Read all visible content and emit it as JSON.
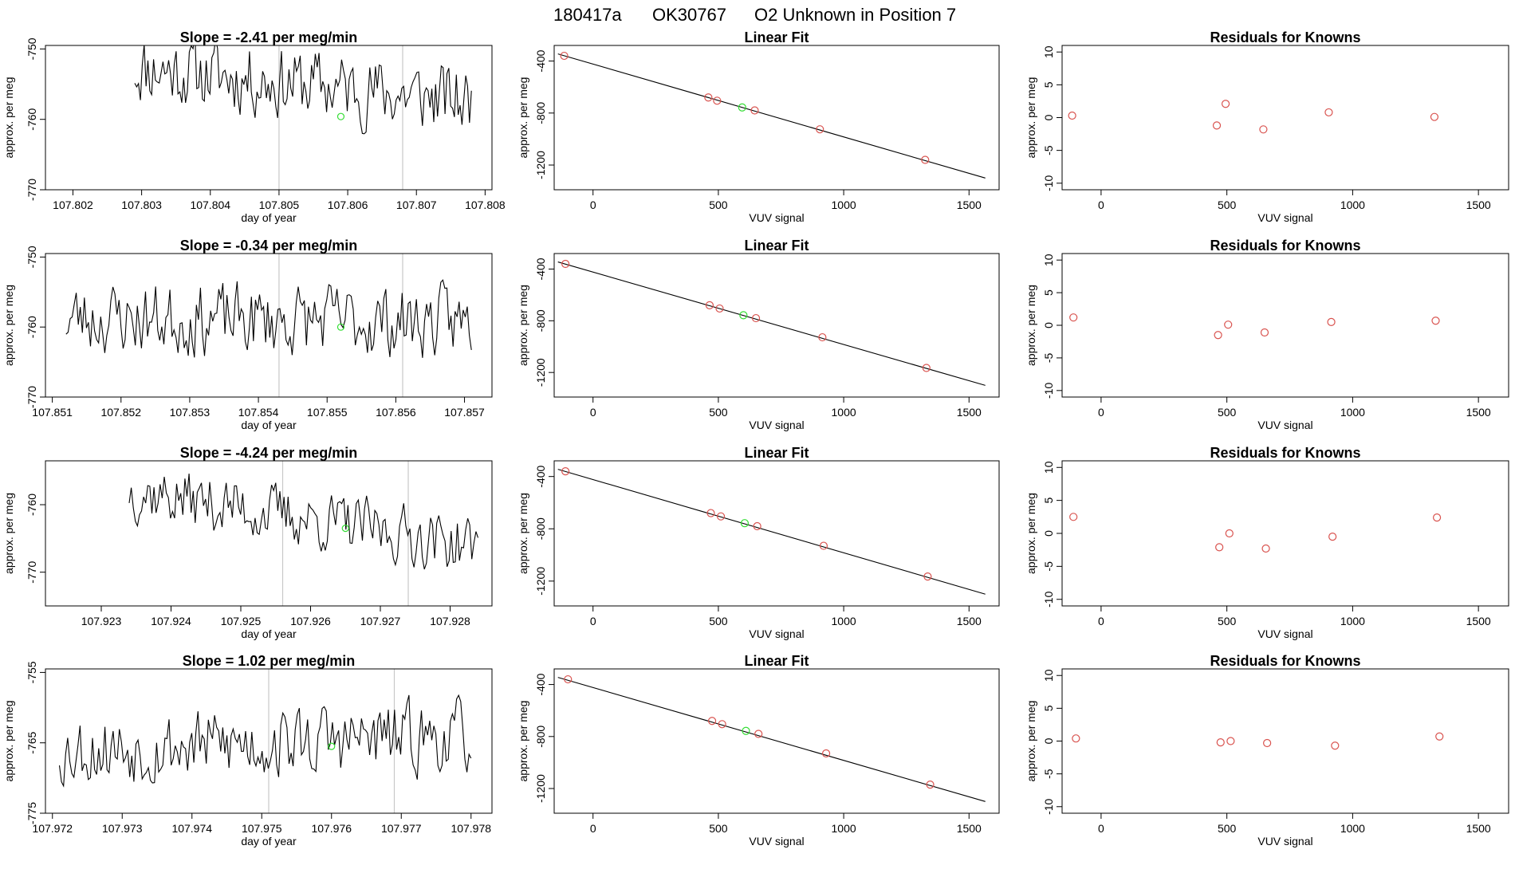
{
  "figure": {
    "title_parts": [
      "180417a",
      "OK30767",
      "O2 Unknown in Position  7"
    ],
    "colors": {
      "trace": "#000000",
      "known": "#d9534f",
      "unknown": "#33dd33",
      "vline": "#c8c8c8",
      "fit": "#000000",
      "axis": "#000000"
    }
  },
  "chart_data": [
    {
      "type": "line",
      "panel": "timeseries",
      "row": 0,
      "title": "Slope =  -2.41  per meg/min",
      "xlabel": "day of year",
      "ylabel": "approx. per meg",
      "xlim": [
        107.8016,
        107.8081
      ],
      "ylim": [
        -770,
        -749.5
      ],
      "xticks": [
        107.802,
        107.803,
        107.804,
        107.805,
        107.806,
        107.807,
        107.808
      ],
      "xtick_labels": [
        "107.802",
        "107.803",
        "107.804",
        "107.805",
        "107.806",
        "107.807",
        "107.808"
      ],
      "yticks": [
        -770,
        -760,
        -750
      ],
      "ytick_labels": [
        "-770",
        "-760",
        "-750"
      ],
      "series_x_range": [
        107.8029,
        107.8078
      ],
      "series_center": -755,
      "series_amp": 7,
      "series_slope": -2.5,
      "seed": 11,
      "n_points": 180,
      "vlines": [
        107.805,
        107.8068
      ],
      "unknown_point": {
        "x": 107.8059,
        "y": -759.6
      }
    },
    {
      "type": "scatter",
      "panel": "linear_fit",
      "row": 0,
      "title": "Linear Fit",
      "xlabel": "VUV signal",
      "ylabel": "approx. per meg",
      "xlim": [
        -155,
        1620
      ],
      "ylim": [
        -1390,
        -280
      ],
      "xticks": [
        0,
        500,
        1000,
        1500
      ],
      "xtick_labels": [
        "0",
        "500",
        "1000",
        "1500"
      ],
      "yticks": [
        -1200,
        -800,
        -400
      ],
      "ytick_labels": [
        "-1200",
        "-800",
        "-400"
      ],
      "knowns": [
        {
          "x": -115,
          "y": -360
        },
        {
          "x": 460,
          "y": -680
        },
        {
          "x": 495,
          "y": -705
        },
        {
          "x": 645,
          "y": -780
        },
        {
          "x": 905,
          "y": -925
        },
        {
          "x": 1325,
          "y": -1160
        }
      ],
      "unknown": {
        "x": 595,
        "y": -757
      },
      "fit_line": [
        {
          "x": -140,
          "y": -345
        },
        {
          "x": 1565,
          "y": -1300
        }
      ]
    },
    {
      "type": "scatter",
      "panel": "residuals",
      "row": 0,
      "title": "Residuals for Knowns",
      "xlabel": "VUV signal",
      "ylabel": "approx. per meg",
      "xlim": [
        -155,
        1620
      ],
      "ylim": [
        -11,
        11
      ],
      "xticks": [
        0,
        500,
        1000,
        1500
      ],
      "xtick_labels": [
        "0",
        "500",
        "1000",
        "1500"
      ],
      "yticks": [
        -10,
        -5,
        0,
        5,
        10
      ],
      "ytick_labels": [
        "-10",
        "-5",
        "0",
        "5",
        "10"
      ],
      "points": [
        {
          "x": -115,
          "y": 0.3
        },
        {
          "x": 460,
          "y": -1.2
        },
        {
          "x": 495,
          "y": 2.1
        },
        {
          "x": 645,
          "y": -1.8
        },
        {
          "x": 905,
          "y": 0.8
        },
        {
          "x": 1325,
          "y": 0.1
        }
      ]
    },
    {
      "type": "line",
      "panel": "timeseries",
      "row": 1,
      "title": "Slope =  -0.34  per meg/min",
      "xlabel": "day of year",
      "ylabel": "approx. per meg",
      "xlim": [
        107.8509,
        107.8574
      ],
      "ylim": [
        -770,
        -749.5
      ],
      "xticks": [
        107.851,
        107.852,
        107.853,
        107.854,
        107.855,
        107.856,
        107.857
      ],
      "xtick_labels": [
        "107.851",
        "107.852",
        "107.853",
        "107.854",
        "107.855",
        "107.856",
        "107.857"
      ],
      "yticks": [
        -770,
        -760,
        -750
      ],
      "ytick_labels": [
        "-770",
        "-760",
        "-750"
      ],
      "series_x_range": [
        107.8512,
        107.8571
      ],
      "series_center": -759,
      "series_amp": 7,
      "series_slope": -0.3,
      "seed": 23,
      "n_points": 200,
      "vlines": [
        107.8543,
        107.8561
      ],
      "unknown_point": {
        "x": 107.8552,
        "y": -760
      }
    },
    {
      "type": "scatter",
      "panel": "linear_fit",
      "row": 1,
      "title": "Linear Fit",
      "xlabel": "VUV signal",
      "ylabel": "approx. per meg",
      "xlim": [
        -155,
        1620
      ],
      "ylim": [
        -1390,
        -280
      ],
      "xticks": [
        0,
        500,
        1000,
        1500
      ],
      "xtick_labels": [
        "0",
        "500",
        "1000",
        "1500"
      ],
      "yticks": [
        -1200,
        -800,
        -400
      ],
      "ytick_labels": [
        "-1200",
        "-800",
        "-400"
      ],
      "knowns": [
        {
          "x": -110,
          "y": -360
        },
        {
          "x": 465,
          "y": -680
        },
        {
          "x": 505,
          "y": -705
        },
        {
          "x": 650,
          "y": -780
        },
        {
          "x": 915,
          "y": -928
        },
        {
          "x": 1330,
          "y": -1165
        }
      ],
      "unknown": {
        "x": 600,
        "y": -757
      },
      "fit_line": [
        {
          "x": -140,
          "y": -345
        },
        {
          "x": 1565,
          "y": -1300
        }
      ]
    },
    {
      "type": "scatter",
      "panel": "residuals",
      "row": 1,
      "title": "Residuals for Knowns",
      "xlabel": "VUV signal",
      "ylabel": "approx. per meg",
      "xlim": [
        -155,
        1620
      ],
      "ylim": [
        -11,
        11
      ],
      "xticks": [
        0,
        500,
        1000,
        1500
      ],
      "xtick_labels": [
        "0",
        "500",
        "1000",
        "1500"
      ],
      "yticks": [
        -10,
        -5,
        0,
        5,
        10
      ],
      "ytick_labels": [
        "-10",
        "-5",
        "0",
        "5",
        "10"
      ],
      "points": [
        {
          "x": -110,
          "y": 1.2
        },
        {
          "x": 465,
          "y": -1.5
        },
        {
          "x": 505,
          "y": 0.1
        },
        {
          "x": 650,
          "y": -1.1
        },
        {
          "x": 915,
          "y": 0.5
        },
        {
          "x": 1330,
          "y": 0.7
        }
      ]
    },
    {
      "type": "line",
      "panel": "timeseries",
      "row": 2,
      "title": "Slope =  -4.24  per meg/min",
      "xlabel": "day of year",
      "ylabel": "approx. per meg",
      "xlim": [
        107.9222,
        107.9286
      ],
      "ylim": [
        -775,
        -753.5
      ],
      "xticks": [
        107.923,
        107.924,
        107.925,
        107.926,
        107.927,
        107.928
      ],
      "xtick_labels": [
        "107.923",
        "107.924",
        "107.925",
        "107.926",
        "107.927",
        "107.928"
      ],
      "yticks": [
        -770,
        -760
      ],
      "ytick_labels": [
        "-770",
        "-760"
      ],
      "series_x_range": [
        107.9234,
        107.9284
      ],
      "series_center": -762,
      "series_amp": 6,
      "series_slope": -4.2,
      "seed": 37,
      "n_points": 170,
      "vlines": [
        107.9256,
        107.9274
      ],
      "unknown_point": {
        "x": 107.9265,
        "y": -763.5
      }
    },
    {
      "type": "scatter",
      "panel": "linear_fit",
      "row": 2,
      "title": "Linear Fit",
      "xlabel": "VUV signal",
      "ylabel": "approx. per meg",
      "xlim": [
        -155,
        1620
      ],
      "ylim": [
        -1390,
        -280
      ],
      "xticks": [
        0,
        500,
        1000,
        1500
      ],
      "xtick_labels": [
        "0",
        "500",
        "1000",
        "1500"
      ],
      "yticks": [
        -1200,
        -800,
        -400
      ],
      "ytick_labels": [
        "-1200",
        "-800",
        "-400"
      ],
      "knowns": [
        {
          "x": -110,
          "y": -360
        },
        {
          "x": 470,
          "y": -680
        },
        {
          "x": 510,
          "y": -705
        },
        {
          "x": 655,
          "y": -780
        },
        {
          "x": 920,
          "y": -930
        },
        {
          "x": 1335,
          "y": -1165
        }
      ],
      "unknown": {
        "x": 605,
        "y": -757
      },
      "fit_line": [
        {
          "x": -140,
          "y": -345
        },
        {
          "x": 1565,
          "y": -1300
        }
      ]
    },
    {
      "type": "scatter",
      "panel": "residuals",
      "row": 2,
      "title": "Residuals for Knowns",
      "xlabel": "VUV signal",
      "ylabel": "approx. per meg",
      "xlim": [
        -155,
        1620
      ],
      "ylim": [
        -11,
        11
      ],
      "xticks": [
        0,
        500,
        1000,
        1500
      ],
      "xtick_labels": [
        "0",
        "500",
        "1000",
        "1500"
      ],
      "yticks": [
        -10,
        -5,
        0,
        5,
        10
      ],
      "ytick_labels": [
        "-10",
        "-5",
        "0",
        "5",
        "10"
      ],
      "points": [
        {
          "x": -110,
          "y": 2.5
        },
        {
          "x": 470,
          "y": -2.1
        },
        {
          "x": 510,
          "y": 0.0
        },
        {
          "x": 655,
          "y": -2.3
        },
        {
          "x": 920,
          "y": -0.5
        },
        {
          "x": 1335,
          "y": 2.4
        }
      ]
    },
    {
      "type": "line",
      "panel": "timeseries",
      "row": 3,
      "title": "Slope =  1.02  per meg/min",
      "xlabel": "day of year",
      "ylabel": "approx. per meg",
      "xlim": [
        107.9719,
        107.9783
      ],
      "ylim": [
        -775,
        -754.5
      ],
      "xticks": [
        107.972,
        107.973,
        107.974,
        107.975,
        107.976,
        107.977,
        107.978
      ],
      "xtick_labels": [
        "107.972",
        "107.973",
        "107.974",
        "107.975",
        "107.976",
        "107.977",
        "107.978"
      ],
      "yticks": [
        -775,
        -765,
        -755
      ],
      "ytick_labels": [
        "-775",
        "-765",
        "-755"
      ],
      "series_x_range": [
        107.9721,
        107.978
      ],
      "series_center": -765,
      "series_amp": 7,
      "series_slope": 1.0,
      "seed": 53,
      "n_points": 200,
      "vlines": [
        107.9751,
        107.9769
      ],
      "unknown_point": {
        "x": 107.976,
        "y": -765.5
      }
    },
    {
      "type": "scatter",
      "panel": "linear_fit",
      "row": 3,
      "title": "Linear Fit",
      "xlabel": "VUV signal",
      "ylabel": "approx. per meg",
      "xlim": [
        -155,
        1620
      ],
      "ylim": [
        -1390,
        -280
      ],
      "xticks": [
        0,
        500,
        1000,
        1500
      ],
      "xtick_labels": [
        "0",
        "500",
        "1000",
        "1500"
      ],
      "yticks": [
        -1200,
        -800,
        -400
      ],
      "ytick_labels": [
        "-1200",
        "-800",
        "-400"
      ],
      "knowns": [
        {
          "x": -100,
          "y": -360
        },
        {
          "x": 475,
          "y": -680
        },
        {
          "x": 515,
          "y": -705
        },
        {
          "x": 660,
          "y": -780
        },
        {
          "x": 930,
          "y": -930
        },
        {
          "x": 1345,
          "y": -1170
        }
      ],
      "unknown": {
        "x": 610,
        "y": -757
      },
      "fit_line": [
        {
          "x": -140,
          "y": -345
        },
        {
          "x": 1565,
          "y": -1300
        }
      ]
    },
    {
      "type": "scatter",
      "panel": "residuals",
      "row": 3,
      "title": "Residuals for Knowns",
      "xlabel": "VUV signal",
      "ylabel": "approx. per meg",
      "xlim": [
        -155,
        1620
      ],
      "ylim": [
        -11,
        11
      ],
      "xticks": [
        0,
        500,
        1000,
        1500
      ],
      "xtick_labels": [
        "0",
        "500",
        "1000",
        "1500"
      ],
      "yticks": [
        -10,
        -5,
        0,
        5,
        10
      ],
      "ytick_labels": [
        "-10",
        "-5",
        "0",
        "5",
        "10"
      ],
      "points": [
        {
          "x": -100,
          "y": 0.4
        },
        {
          "x": 475,
          "y": -0.2
        },
        {
          "x": 515,
          "y": 0.0
        },
        {
          "x": 660,
          "y": -0.3
        },
        {
          "x": 930,
          "y": -0.7
        },
        {
          "x": 1345,
          "y": 0.7
        }
      ]
    }
  ]
}
